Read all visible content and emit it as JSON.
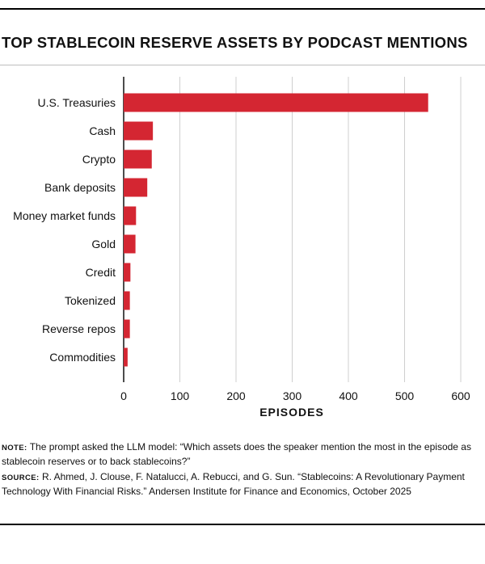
{
  "title": "TOP STABLECOIN RESERVE ASSETS BY PODCAST MENTIONS",
  "colors": {
    "bar": "#d42632",
    "grid": "#cfcfcf",
    "axis": "#111111"
  },
  "chart_data": {
    "type": "bar",
    "orientation": "horizontal",
    "title": "TOP STABLECOIN RESERVE ASSETS BY PODCAST MENTIONS",
    "xlabel": "EPISODES",
    "ylabel": "",
    "categories": [
      "U.S. Treasuries",
      "Cash",
      "Crypto",
      "Bank deposits",
      "Money market funds",
      "Gold",
      "Credit",
      "Tokenized",
      "Reverse repos",
      "Commodities"
    ],
    "values": [
      542,
      52,
      50,
      42,
      22,
      21,
      12,
      11,
      11,
      7
    ],
    "xlim": [
      0,
      600
    ],
    "xticks": [
      "0",
      "100",
      "200",
      "300",
      "400",
      "500",
      "600"
    ],
    "grid": true,
    "legend": "none"
  },
  "note": {
    "label": "NOTE:",
    "text": "The prompt asked the LLM model: “Which assets does the speaker mention the most in the episode as stablecoin reserves or to back stablecoins?”"
  },
  "source": {
    "label": "SOURCE:",
    "text": "R. Ahmed, J. Clouse, F. Natalucci, A. Rebucci, and G. Sun. “Stablecoins: A Revolutionary Payment Technology With Financial Risks.” Andersen Institute for Finance and Economics, October 2025"
  }
}
